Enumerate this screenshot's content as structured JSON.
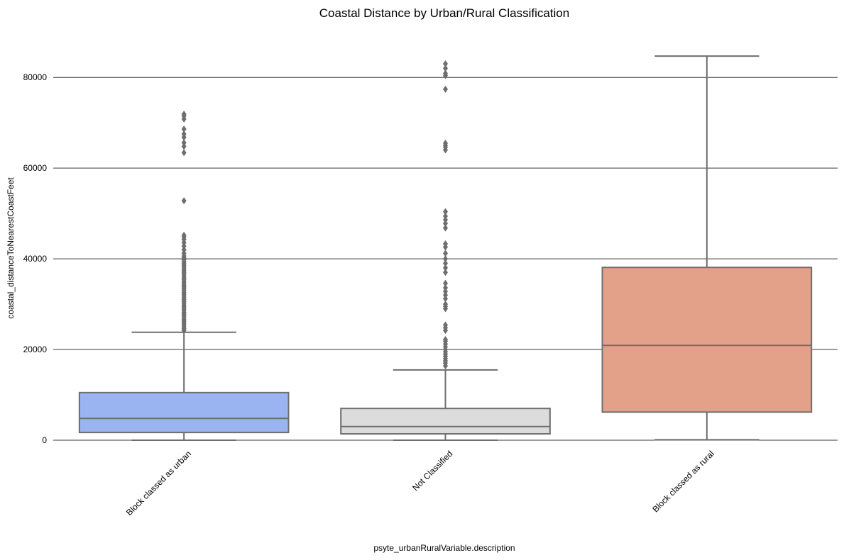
{
  "chart_data": {
    "type": "box",
    "title": "Coastal Distance by Urban/Rural Classification",
    "xlabel": "psyte_urbanRuralVariable.description",
    "ylabel": "coastal_distanceToNearestCoastFeet",
    "ylim": [
      -800,
      91000
    ],
    "yticks": [
      0,
      20000,
      40000,
      60000,
      80000
    ],
    "grid": "horizontal",
    "categories": [
      "Block classed as urban",
      "Not Classified",
      "Block classed as rural"
    ],
    "boxes": [
      {
        "category": "Block classed as urban",
        "color": "#9ab4f2",
        "whisker_low": 0,
        "q1": 1700,
        "median": 4800,
        "q3": 10500,
        "whisker_high": 23800,
        "outliers": [
          24200,
          24600,
          25000,
          25400,
          25800,
          26200,
          26600,
          27000,
          27400,
          27800,
          28200,
          28600,
          29000,
          29400,
          29800,
          30200,
          30600,
          31000,
          31400,
          31800,
          32200,
          32600,
          33000,
          33400,
          33800,
          34200,
          34600,
          35000,
          35400,
          35800,
          36200,
          36600,
          37000,
          37400,
          37800,
          38200,
          38600,
          39000,
          39400,
          39800,
          40200,
          40600,
          41200,
          42000,
          42800,
          43600,
          44300,
          44800,
          45200,
          52800,
          63400,
          64800,
          65600,
          66800,
          67500,
          68600,
          70800,
          71500,
          71900
        ]
      },
      {
        "category": "Not Classified",
        "color": "#dcdcdc",
        "whisker_low": 0,
        "q1": 1400,
        "median": 3000,
        "q3": 7000,
        "whisker_high": 15500,
        "outliers": [
          16400,
          17000,
          17500,
          18000,
          18500,
          19000,
          19500,
          20000,
          20600,
          21200,
          21800,
          22200,
          24200,
          24800,
          25400,
          29000,
          29500,
          30000,
          31200,
          32000,
          32800,
          33600,
          34600,
          37000,
          38000,
          39000,
          40000,
          41200,
          42600,
          43300,
          46800,
          47800,
          48600,
          49400,
          50400,
          64000,
          64600,
          65000,
          65500,
          77400,
          80400,
          80900,
          82000,
          83000
        ]
      },
      {
        "category": "Block classed as rural",
        "color": "#e4a18a",
        "whisker_low": 100,
        "q1": 6200,
        "median": 20900,
        "q3": 38100,
        "whisker_high": 84700,
        "outliers": []
      }
    ]
  }
}
